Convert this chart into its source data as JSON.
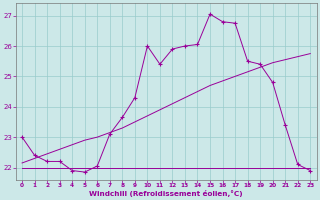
{
  "xlabel": "Windchill (Refroidissement éolien,°C)",
  "xlim": [
    -0.5,
    23.5
  ],
  "ylim": [
    21.6,
    27.4
  ],
  "yticks": [
    22,
    23,
    24,
    25,
    26,
    27
  ],
  "xticks": [
    0,
    1,
    2,
    3,
    4,
    5,
    6,
    7,
    8,
    9,
    10,
    11,
    12,
    13,
    14,
    15,
    16,
    17,
    18,
    19,
    20,
    21,
    22,
    23
  ],
  "bg_color": "#cce8e8",
  "line_color": "#990099",
  "grid_color": "#99cccc",
  "line1_x": [
    0,
    1,
    2,
    3,
    4,
    5,
    6,
    7,
    8,
    9,
    10,
    11,
    12,
    13,
    14,
    15,
    16,
    17,
    18,
    19,
    20,
    21,
    22,
    23
  ],
  "line1_y": [
    23.0,
    22.4,
    22.2,
    22.2,
    21.9,
    21.85,
    22.05,
    23.1,
    23.65,
    24.3,
    26.0,
    25.4,
    25.9,
    26.0,
    26.05,
    27.05,
    26.8,
    26.75,
    25.5,
    25.4,
    24.8,
    23.4,
    22.1,
    21.9
  ],
  "line2_x": [
    0,
    1,
    2,
    3,
    4,
    5,
    6,
    7,
    8,
    9,
    10,
    11,
    12,
    13,
    14,
    15,
    16,
    17,
    18,
    19,
    20,
    21,
    22,
    23
  ],
  "line2_y": [
    22.0,
    22.0,
    22.0,
    22.0,
    22.0,
    22.0,
    22.0,
    22.0,
    22.0,
    22.0,
    22.0,
    22.0,
    22.0,
    22.0,
    22.0,
    22.0,
    22.0,
    22.0,
    22.0,
    22.0,
    22.0,
    22.0,
    22.0,
    22.0
  ],
  "line3_x": [
    0,
    1,
    2,
    3,
    4,
    5,
    6,
    7,
    8,
    9,
    10,
    11,
    12,
    13,
    14,
    15,
    16,
    17,
    18,
    19,
    20,
    21,
    22,
    23
  ],
  "line3_y": [
    22.15,
    22.3,
    22.45,
    22.6,
    22.75,
    22.9,
    23.0,
    23.15,
    23.3,
    23.5,
    23.7,
    23.9,
    24.1,
    24.3,
    24.5,
    24.7,
    24.85,
    25.0,
    25.15,
    25.3,
    25.45,
    25.55,
    25.65,
    25.75
  ]
}
